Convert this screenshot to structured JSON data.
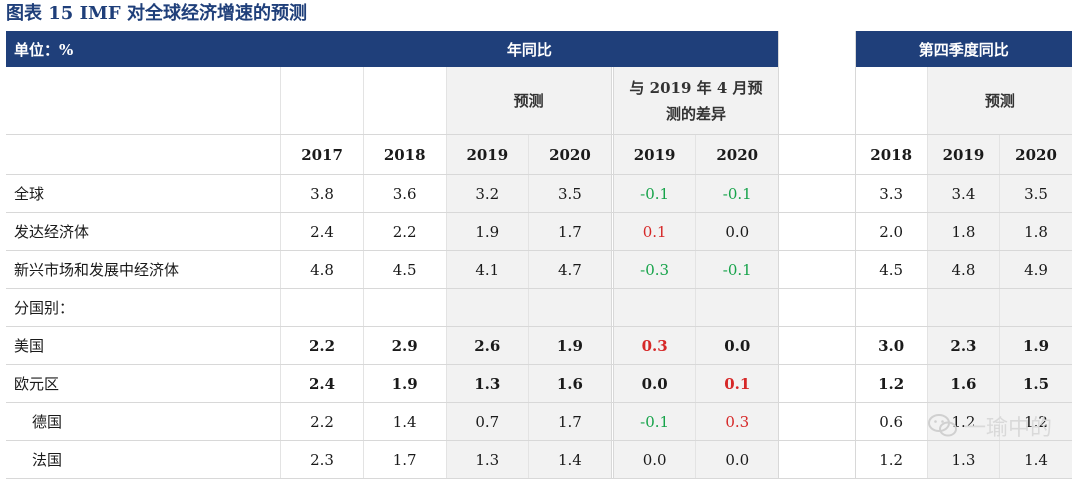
{
  "title": "图表 15   IMF 对全球经济增速的预测",
  "header": {
    "unit": "单位：%",
    "group_yoy": "年同比",
    "group_q4": "第四季度同比",
    "forecast": "预测",
    "diff_line1": "与 2019 年 4 月预",
    "diff_line2": "测的差异",
    "forecast_q4": "预测"
  },
  "years": {
    "c1": "2017",
    "c2": "2018",
    "c3": "2019",
    "c4": "2020",
    "d1": "2019",
    "d2": "2020",
    "q1": "2018",
    "q2": "2019",
    "q3": "2020"
  },
  "rows": [
    {
      "label": "全球",
      "v": [
        "3.8",
        "3.6",
        "3.2",
        "3.5"
      ],
      "d": [
        "-0.1",
        "-0.1"
      ],
      "q": [
        "3.3",
        "3.4",
        "3.5"
      ]
    },
    {
      "label": "发达经济体",
      "v": [
        "2.4",
        "2.2",
        "1.9",
        "1.7"
      ],
      "d": [
        "0.1",
        "0.0"
      ],
      "q": [
        "2.0",
        "1.8",
        "1.8"
      ]
    },
    {
      "label": "新兴市场和发展中经济体",
      "v": [
        "4.8",
        "4.5",
        "4.1",
        "4.7"
      ],
      "d": [
        "-0.3",
        "-0.1"
      ],
      "q": [
        "4.5",
        "4.8",
        "4.9"
      ]
    },
    {
      "label": "分国别：",
      "v": [
        "",
        "",
        "",
        ""
      ],
      "d": [
        "",
        ""
      ],
      "q": [
        "",
        "",
        ""
      ]
    },
    {
      "label": "美国",
      "v": [
        "2.2",
        "2.9",
        "2.6",
        "1.9"
      ],
      "d": [
        "0.3",
        "0.0"
      ],
      "q": [
        "3.0",
        "2.3",
        "1.9"
      ]
    },
    {
      "label": "欧元区",
      "v": [
        "2.4",
        "1.9",
        "1.3",
        "1.6"
      ],
      "d": [
        "0.0",
        "0.1"
      ],
      "q": [
        "1.2",
        "1.6",
        "1.5"
      ]
    },
    {
      "label": "德国",
      "v": [
        "2.2",
        "1.4",
        "0.7",
        "1.7"
      ],
      "d": [
        "-0.1",
        "0.3"
      ],
      "q": [
        "0.6",
        "1.2",
        "1.2"
      ]
    },
    {
      "label": "法国",
      "v": [
        "2.3",
        "1.7",
        "1.3",
        "1.4"
      ],
      "d": [
        "0.0",
        "0.0"
      ],
      "q": [
        "1.2",
        "1.3",
        "1.4"
      ]
    }
  ],
  "watermark": "一瑜中的",
  "colors": {
    "header_bg": "#1f3f7a",
    "negative": "#16a34a",
    "positive": "#d62828",
    "shade": "#f2f2f2"
  }
}
